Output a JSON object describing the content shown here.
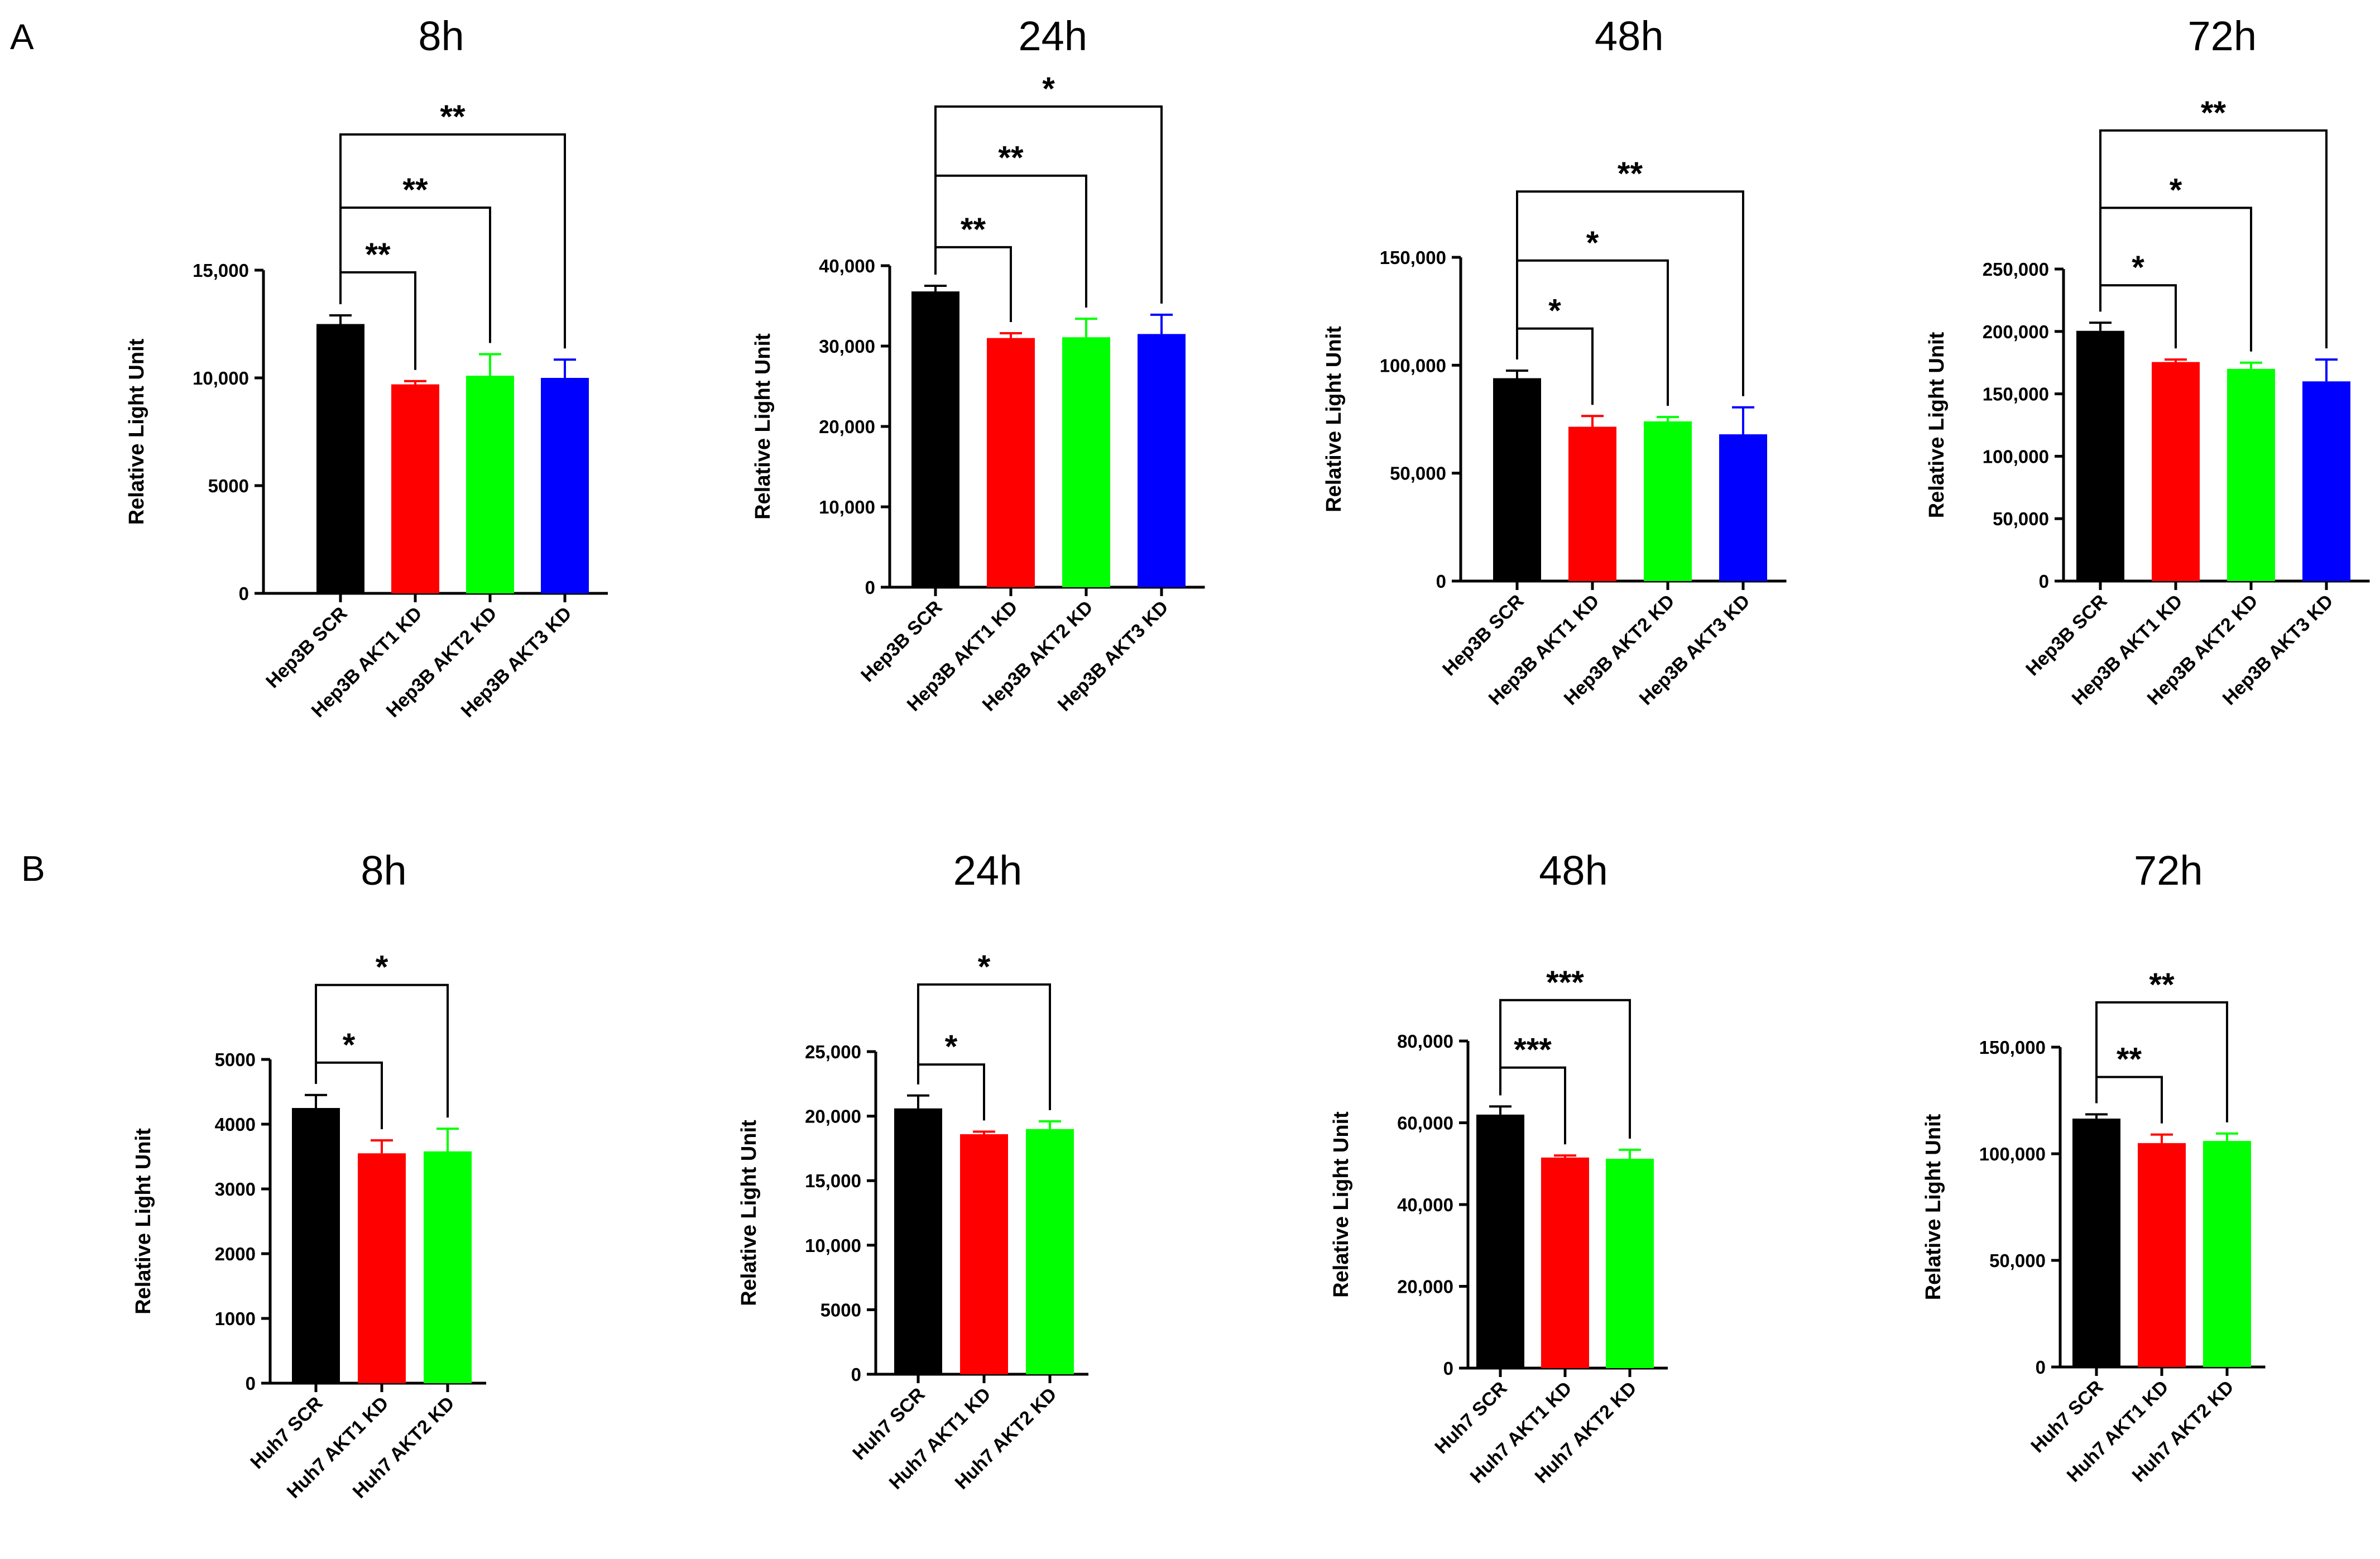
{
  "panels": {
    "A": "A",
    "B": "B"
  },
  "chart_data": [
    {
      "type": "bar",
      "panel": "A",
      "title": "8h",
      "xlabel": "",
      "ylabel": "Relative Light Unit",
      "categories": [
        "Hep3B SCR",
        "Hep3B AKT1 KD",
        "Hep3B AKT2 KD",
        "Hep3B AKT3 KD"
      ],
      "values": [
        12500,
        9700,
        10100,
        10000
      ],
      "errors": [
        400,
        150,
        1000,
        850
      ],
      "colors": [
        "#000000",
        "#ff0000",
        "#00ff00",
        "#0000ff"
      ],
      "ylim": [
        0,
        15000
      ],
      "yticks": [
        0,
        5000,
        10000,
        15000
      ],
      "ytick_labels": [
        "0",
        "5000",
        "10,000",
        "15,000"
      ],
      "significance": [
        {
          "from": 0,
          "to": 1,
          "label": "**",
          "y": 14900
        },
        {
          "from": 0,
          "to": 2,
          "label": "**",
          "y": 17900
        },
        {
          "from": 0,
          "to": 3,
          "label": "**",
          "y": 21300
        }
      ]
    },
    {
      "type": "bar",
      "panel": "A",
      "title": "24h",
      "xlabel": "",
      "ylabel": "Relative Light Unit",
      "categories": [
        "Hep3B SCR",
        "Hep3B AKT1 KD",
        "Hep3B AKT2 KD",
        "Hep3B AKT3 KD"
      ],
      "values": [
        36800,
        31000,
        31100,
        31500
      ],
      "errors": [
        700,
        600,
        2300,
        2400
      ],
      "colors": [
        "#000000",
        "#ff0000",
        "#00ff00",
        "#0000ff"
      ],
      "ylim": [
        0,
        40000
      ],
      "yticks": [
        0,
        10000,
        20000,
        30000,
        40000
      ],
      "ytick_labels": [
        "0",
        "10,000",
        "20,000",
        "30,000",
        "40,000"
      ],
      "significance": [
        {
          "from": 0,
          "to": 1,
          "label": "**",
          "y": 42300
        },
        {
          "from": 0,
          "to": 2,
          "label": "**",
          "y": 51200
        },
        {
          "from": 0,
          "to": 3,
          "label": "*",
          "y": 59800
        }
      ]
    },
    {
      "type": "bar",
      "panel": "A",
      "title": "48h",
      "xlabel": "",
      "ylabel": "Relative Light Unit",
      "categories": [
        "Hep3B SCR",
        "Hep3B AKT1 KD",
        "Hep3B AKT2 KD",
        "Hep3B AKT3 KD"
      ],
      "values": [
        94000,
        71500,
        74000,
        68000
      ],
      "errors": [
        3500,
        5000,
        2000,
        12500
      ],
      "colors": [
        "#000000",
        "#ff0000",
        "#00ff00",
        "#0000ff"
      ],
      "ylim": [
        0,
        150000
      ],
      "yticks": [
        0,
        50000,
        100000,
        150000
      ],
      "ytick_labels": [
        "0",
        "50,000",
        "100,000",
        "150,000"
      ],
      "significance": [
        {
          "from": 0,
          "to": 1,
          "label": "*",
          "y": 117000
        },
        {
          "from": 0,
          "to": 2,
          "label": "*",
          "y": 148500
        },
        {
          "from": 0,
          "to": 3,
          "label": "**",
          "y": 180500
        }
      ]
    },
    {
      "type": "bar",
      "panel": "A",
      "title": "72h",
      "xlabel": "",
      "ylabel": "Relative Light Unit",
      "categories": [
        "Hep3B SCR",
        "Hep3B AKT1 KD",
        "Hep3B AKT2 KD",
        "Hep3B AKT3 KD"
      ],
      "values": [
        200500,
        175500,
        170000,
        160000
      ],
      "errors": [
        6500,
        2000,
        5000,
        17500
      ],
      "colors": [
        "#000000",
        "#ff0000",
        "#00ff00",
        "#0000ff"
      ],
      "ylim": [
        0,
        250000
      ],
      "yticks": [
        0,
        50000,
        100000,
        150000,
        200000,
        250000
      ],
      "ytick_labels": [
        "0",
        "50,000",
        "100,000",
        "150,000",
        "200,000",
        "250,000"
      ],
      "significance": [
        {
          "from": 0,
          "to": 1,
          "label": "*",
          "y": 237000
        },
        {
          "from": 0,
          "to": 2,
          "label": "*",
          "y": 299000
        },
        {
          "from": 0,
          "to": 3,
          "label": "**",
          "y": 361000
        }
      ]
    },
    {
      "type": "bar",
      "panel": "B",
      "title": "8h",
      "xlabel": "",
      "ylabel": "Relative Light Unit",
      "categories": [
        "Huh7 SCR",
        "Huh7 AKT1 KD",
        "Huh7 AKT2 KD"
      ],
      "values": [
        4250,
        3550,
        3580
      ],
      "errors": [
        200,
        200,
        350
      ],
      "colors": [
        "#000000",
        "#ff0000",
        "#00ff00"
      ],
      "ylim": [
        0,
        5000
      ],
      "yticks": [
        0,
        1000,
        2000,
        3000,
        4000,
        5000
      ],
      "ytick_labels": [
        "0",
        "1000",
        "2000",
        "3000",
        "4000",
        "5000"
      ],
      "significance": [
        {
          "from": 0,
          "to": 1,
          "label": "*",
          "y": 4950
        },
        {
          "from": 0,
          "to": 2,
          "label": "*",
          "y": 6150
        }
      ]
    },
    {
      "type": "bar",
      "panel": "B",
      "title": "24h",
      "xlabel": "",
      "ylabel": "Relative Light Unit",
      "categories": [
        "Huh7 SCR",
        "Huh7 AKT1 KD",
        "Huh7 AKT2 KD"
      ],
      "values": [
        20600,
        18600,
        19000
      ],
      "errors": [
        1000,
        200,
        600
      ],
      "colors": [
        "#000000",
        "#ff0000",
        "#00ff00"
      ],
      "ylim": [
        0,
        25000
      ],
      "yticks": [
        0,
        5000,
        10000,
        15000,
        20000,
        25000
      ],
      "ytick_labels": [
        "0",
        "5000",
        "10,000",
        "15,000",
        "20,000",
        "25,000"
      ],
      "significance": [
        {
          "from": 0,
          "to": 1,
          "label": "*",
          "y": 24000
        },
        {
          "from": 0,
          "to": 2,
          "label": "*",
          "y": 30200
        }
      ]
    },
    {
      "type": "bar",
      "panel": "B",
      "title": "48h",
      "xlabel": "",
      "ylabel": "Relative Light Unit",
      "categories": [
        "Huh7 SCR",
        "Huh7 AKT1 KD",
        "Huh7 AKT2 KD"
      ],
      "values": [
        62000,
        51500,
        51200
      ],
      "errors": [
        2000,
        500,
        2200
      ],
      "colors": [
        "#000000",
        "#ff0000",
        "#00ff00"
      ],
      "ylim": [
        0,
        80000
      ],
      "yticks": [
        0,
        20000,
        40000,
        60000,
        80000
      ],
      "ytick_labels": [
        "0",
        "20,000",
        "40,000",
        "60,000",
        "80,000"
      ],
      "significance": [
        {
          "from": 0,
          "to": 1,
          "label": "***",
          "y": 73500
        },
        {
          "from": 0,
          "to": 2,
          "label": "***",
          "y": 90000
        }
      ]
    },
    {
      "type": "bar",
      "panel": "B",
      "title": "72h",
      "xlabel": "",
      "ylabel": "Relative Light Unit",
      "categories": [
        "Huh7 SCR",
        "Huh7 AKT1 KD",
        "Huh7 AKT2 KD"
      ],
      "values": [
        116500,
        105000,
        106000
      ],
      "errors": [
        2000,
        4000,
        3500
      ],
      "colors": [
        "#000000",
        "#ff0000",
        "#00ff00"
      ],
      "ylim": [
        0,
        150000
      ],
      "yticks": [
        0,
        50000,
        100000,
        150000
      ],
      "ytick_labels": [
        "0",
        "50,000",
        "100,000",
        "150,000"
      ],
      "significance": [
        {
          "from": 0,
          "to": 1,
          "label": "**",
          "y": 136000
        },
        {
          "from": 0,
          "to": 2,
          "label": "**",
          "y": 171000
        }
      ]
    }
  ]
}
